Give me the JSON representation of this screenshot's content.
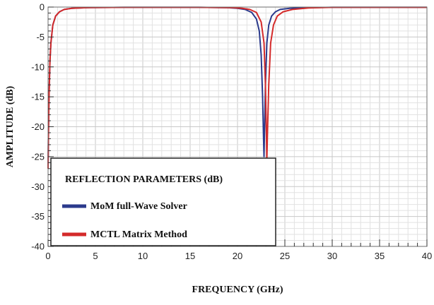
{
  "chart_data": {
    "type": "line",
    "xlabel": "FREQUENCY (GHz)",
    "ylabel": "AMPLITUDE (dB)",
    "xlim": [
      0,
      40
    ],
    "ylim": [
      -40,
      0
    ],
    "xticks": [
      0,
      5,
      10,
      15,
      20,
      25,
      30,
      35,
      40
    ],
    "yticks": [
      0,
      -5,
      -10,
      -15,
      -20,
      -25,
      -30,
      -35,
      -40
    ],
    "grid": true,
    "legend": {
      "title": "REFLECTION PARAMETERS (dB)",
      "position": "bottom-left"
    },
    "series": [
      {
        "name": "MoM full-Wave Solver",
        "color": "#2b3a8c",
        "x": [
          0,
          0.05,
          0.1,
          0.2,
          0.3,
          0.5,
          0.8,
          1.2,
          1.7,
          2.5,
          4,
          8,
          12,
          16,
          19,
          20,
          20.8,
          21.5,
          22.0,
          22.3,
          22.5,
          22.65,
          22.75,
          22.8,
          22.85,
          22.95,
          23.1,
          23.3,
          23.6,
          24.0,
          24.5,
          25.5,
          27,
          30,
          35,
          40
        ],
        "y": [
          -27,
          -20,
          -15,
          -9,
          -6,
          -3,
          -1.5,
          -0.8,
          -0.4,
          -0.2,
          -0.1,
          -0.05,
          -0.05,
          -0.05,
          -0.1,
          -0.2,
          -0.4,
          -0.9,
          -2,
          -4,
          -8,
          -15,
          -22,
          -25,
          -21,
          -13,
          -6,
          -3,
          -1.5,
          -0.8,
          -0.4,
          -0.2,
          -0.1,
          -0.05,
          -0.05,
          -0.05
        ]
      },
      {
        "name": "MCTL Matrix Method",
        "color": "#d42a2a",
        "x": [
          0,
          0.05,
          0.1,
          0.2,
          0.3,
          0.5,
          0.8,
          1.2,
          1.7,
          2.5,
          4,
          8,
          12,
          16,
          19.5,
          20.5,
          21.3,
          22.0,
          22.5,
          22.8,
          22.95,
          23.05,
          23.1,
          23.15,
          23.3,
          23.5,
          23.8,
          24.2,
          24.8,
          25.8,
          27.5,
          30,
          35,
          40
        ],
        "y": [
          -27,
          -20,
          -15,
          -9,
          -6,
          -3,
          -1.5,
          -0.8,
          -0.4,
          -0.2,
          -0.1,
          -0.05,
          -0.05,
          -0.05,
          -0.1,
          -0.2,
          -0.4,
          -0.9,
          -2.5,
          -6,
          -13,
          -21,
          -25.5,
          -22,
          -13,
          -6,
          -3,
          -1.5,
          -0.8,
          -0.4,
          -0.15,
          -0.05,
          -0.05,
          -0.05
        ]
      }
    ]
  }
}
